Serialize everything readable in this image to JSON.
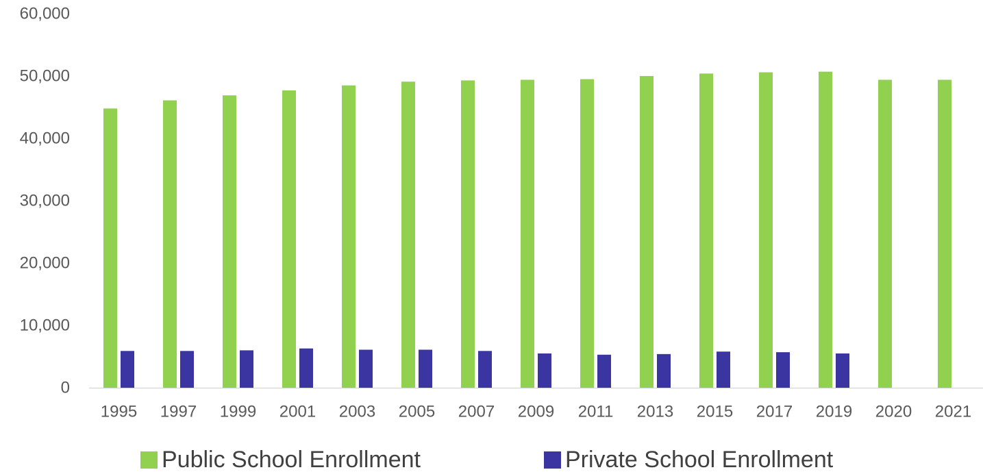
{
  "chart_data": {
    "type": "bar",
    "categories": [
      "1995",
      "1997",
      "1999",
      "2001",
      "2003",
      "2005",
      "2007",
      "2009",
      "2011",
      "2013",
      "2015",
      "2017",
      "2019",
      "2020",
      "2021"
    ],
    "series": [
      {
        "name": "Public School Enrollment",
        "color": "#92d050",
        "values": [
          44800,
          46100,
          46900,
          47700,
          48500,
          49100,
          49300,
          49400,
          49500,
          50000,
          50400,
          50600,
          50700,
          49400,
          49400
        ]
      },
      {
        "name": "Private School Enrollment",
        "color": "#3a35a0",
        "values": [
          5900,
          5900,
          6000,
          6300,
          6100,
          6100,
          5900,
          5500,
          5300,
          5400,
          5800,
          5700,
          5500,
          null,
          null
        ]
      }
    ],
    "yticks": [
      "0",
      "10,000",
      "20,000",
      "30,000",
      "40,000",
      "50,000",
      "60,000"
    ],
    "ylim": [
      0,
      60000
    ],
    "grid": false,
    "legend_position": "bottom",
    "xlabel": "",
    "ylabel": "",
    "title": ""
  }
}
